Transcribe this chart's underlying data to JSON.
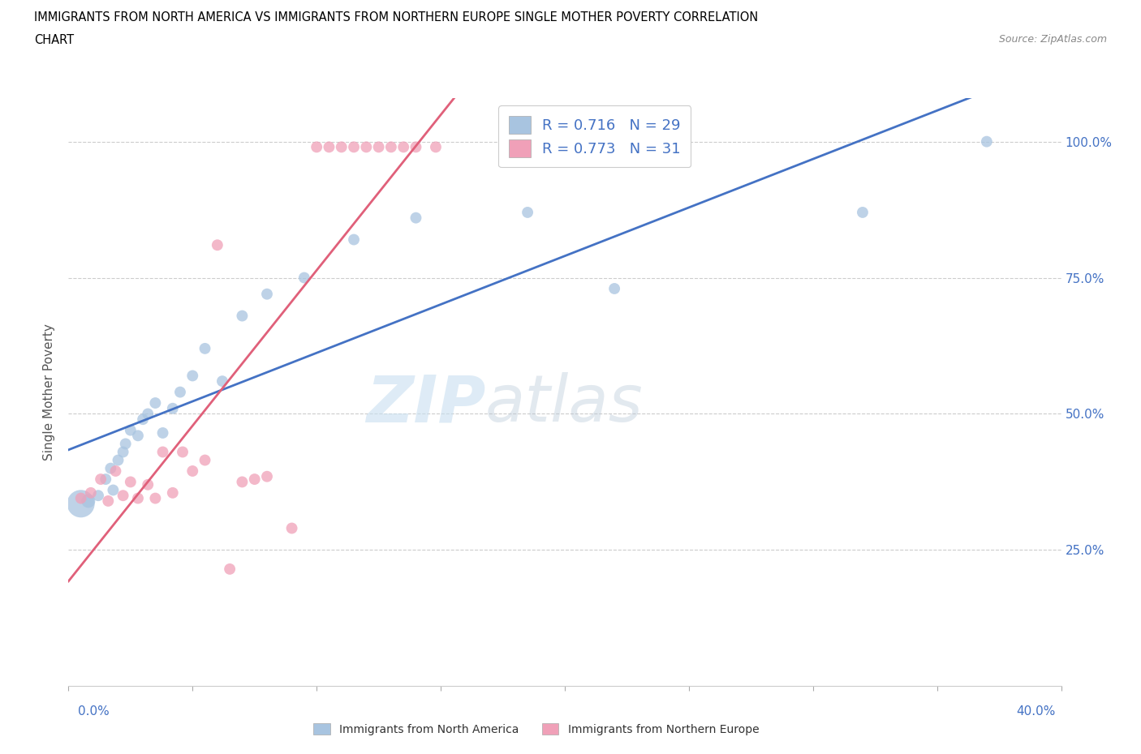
{
  "title_line1": "IMMIGRANTS FROM NORTH AMERICA VS IMMIGRANTS FROM NORTHERN EUROPE SINGLE MOTHER POVERTY CORRELATION",
  "title_line2": "CHART",
  "source": "Source: ZipAtlas.com",
  "ylabel": "Single Mother Poverty",
  "xlim": [
    0.0,
    0.4
  ],
  "ylim": [
    0.0,
    1.08
  ],
  "xticks": [
    0.0,
    0.05,
    0.1,
    0.15,
    0.2,
    0.25,
    0.3,
    0.35,
    0.4
  ],
  "yticks": [
    0.0,
    0.25,
    0.5,
    0.75,
    1.0
  ],
  "blue_R": 0.716,
  "blue_N": 29,
  "pink_R": 0.773,
  "pink_N": 31,
  "blue_color": "#a8c4e0",
  "pink_color": "#f0a0b8",
  "blue_line_color": "#4472c4",
  "pink_line_color": "#e0607a",
  "watermark_zip": "ZIP",
  "watermark_atlas": "atlas",
  "bottom_legend_label1": "Immigrants from North America",
  "bottom_legend_label2": "Immigrants from Northern Europe",
  "blue_scatter_x": [
    0.005,
    0.008,
    0.012,
    0.015,
    0.017,
    0.018,
    0.02,
    0.022,
    0.023,
    0.025,
    0.028,
    0.03,
    0.032,
    0.035,
    0.038,
    0.042,
    0.045,
    0.05,
    0.055,
    0.062,
    0.07,
    0.08,
    0.095,
    0.115,
    0.14,
    0.185,
    0.22,
    0.32,
    0.37
  ],
  "blue_scatter_y": [
    0.335,
    0.34,
    0.35,
    0.38,
    0.4,
    0.36,
    0.415,
    0.43,
    0.445,
    0.47,
    0.46,
    0.49,
    0.5,
    0.52,
    0.465,
    0.51,
    0.54,
    0.57,
    0.62,
    0.56,
    0.68,
    0.72,
    0.75,
    0.82,
    0.86,
    0.87,
    0.73,
    0.87,
    1.0
  ],
  "blue_sizes": [
    600,
    150,
    100,
    100,
    100,
    100,
    100,
    100,
    100,
    100,
    100,
    100,
    100,
    100,
    100,
    100,
    100,
    100,
    100,
    100,
    100,
    100,
    100,
    100,
    100,
    100,
    100,
    100,
    100
  ],
  "pink_scatter_x": [
    0.005,
    0.009,
    0.013,
    0.016,
    0.019,
    0.022,
    0.025,
    0.028,
    0.032,
    0.035,
    0.038,
    0.042,
    0.046,
    0.05,
    0.055,
    0.06,
    0.065,
    0.07,
    0.075,
    0.08,
    0.09,
    0.1,
    0.105,
    0.11,
    0.115,
    0.12,
    0.125,
    0.13,
    0.135,
    0.14,
    0.148
  ],
  "pink_scatter_y": [
    0.345,
    0.355,
    0.38,
    0.34,
    0.395,
    0.35,
    0.375,
    0.345,
    0.37,
    0.345,
    0.43,
    0.355,
    0.43,
    0.395,
    0.415,
    0.81,
    0.215,
    0.375,
    0.38,
    0.385,
    0.29,
    0.99,
    0.99,
    0.99,
    0.99,
    0.99,
    0.99,
    0.99,
    0.99,
    0.99,
    0.99
  ],
  "pink_sizes": [
    100,
    100,
    100,
    100,
    100,
    100,
    100,
    100,
    100,
    100,
    100,
    100,
    100,
    100,
    100,
    100,
    100,
    100,
    100,
    100,
    100,
    100,
    100,
    100,
    100,
    100,
    100,
    100,
    100,
    100,
    100
  ]
}
